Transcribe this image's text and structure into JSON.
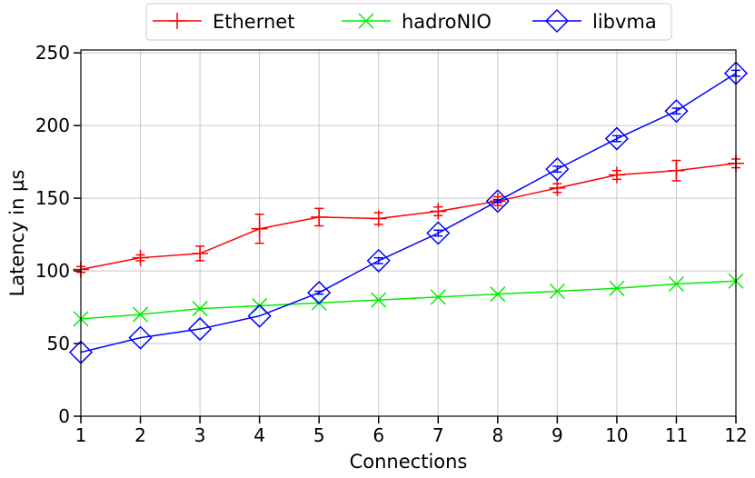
{
  "chart_data": {
    "type": "line",
    "xlabel": "Connections",
    "ylabel": "Latency in µs",
    "x": [
      1,
      2,
      3,
      4,
      5,
      6,
      7,
      8,
      9,
      10,
      11,
      12
    ],
    "xlim": [
      1,
      12
    ],
    "ylim": [
      0,
      252
    ],
    "yticks": [
      0,
      50,
      100,
      150,
      200,
      250
    ],
    "grid": true,
    "legend_position": "top-center",
    "series": [
      {
        "name": "Ethernet",
        "color": "#ff0000",
        "marker": "plus",
        "values": [
          101,
          109,
          112,
          129,
          137,
          136,
          141,
          148,
          157,
          166,
          169,
          174
        ],
        "error": [
          2,
          2,
          5,
          10,
          6,
          4,
          3,
          3,
          3,
          3,
          7,
          3
        ]
      },
      {
        "name": "hadroNIO",
        "color": "#00ee00",
        "marker": "x",
        "values": [
          67,
          70,
          74,
          76,
          78,
          80,
          82,
          84,
          86,
          88,
          91,
          93
        ],
        "error": [
          0,
          0,
          0,
          0,
          0,
          0,
          0,
          0,
          0,
          0,
          0,
          0
        ]
      },
      {
        "name": "libvma",
        "color": "#0000ff",
        "marker": "diamond",
        "values": [
          44,
          54,
          60,
          69,
          85,
          107,
          126,
          148,
          170,
          191,
          210,
          236
        ],
        "error": [
          0,
          0,
          0,
          0,
          1,
          2,
          2,
          1,
          2,
          2,
          2,
          2
        ]
      }
    ]
  }
}
